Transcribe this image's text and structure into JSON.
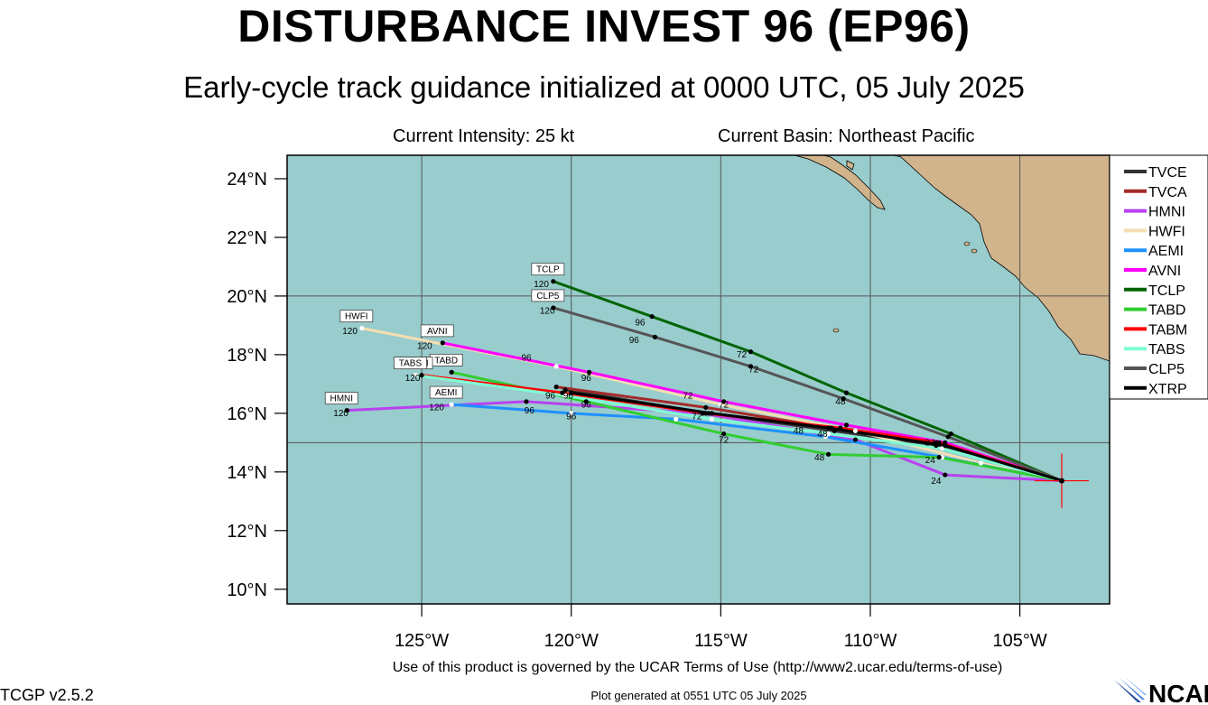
{
  "header": {
    "title": "DISTURBANCE INVEST 96 (EP96)",
    "subtitle": "Early-cycle track guidance initialized at 0000 UTC, 05 July 2025",
    "current_intensity": "Current Intensity: 25 kt",
    "current_basin": "Current Basin: Northeast Pacific"
  },
  "map": {
    "lon_range": [
      -129.5,
      -102
    ],
    "lat_range": [
      9.5,
      24.8
    ],
    "lat_ticks": [
      {
        "value": 24,
        "label": "24°N"
      },
      {
        "value": 22,
        "label": "22°N"
      },
      {
        "value": 20,
        "label": "20°N"
      },
      {
        "value": 18,
        "label": "18°N"
      },
      {
        "value": 16,
        "label": "16°N"
      },
      {
        "value": 14,
        "label": "14°N"
      },
      {
        "value": 12,
        "label": "12°N"
      },
      {
        "value": 10,
        "label": "10°N"
      }
    ],
    "lon_ticks": [
      {
        "value": -125,
        "label": "125°W"
      },
      {
        "value": -120,
        "label": "120°W"
      },
      {
        "value": -115,
        "label": "115°W"
      },
      {
        "value": -110,
        "label": "110°W"
      },
      {
        "value": -105,
        "label": "105°W"
      }
    ],
    "grid_lons": [
      -125,
      -120,
      -115,
      -110,
      -105
    ],
    "grid_lats": [
      15,
      20
    ],
    "initial_position": {
      "lon": -103.6,
      "lat": 13.7
    },
    "colors": {
      "ocean": "#99cccc",
      "land": "#d2b48c"
    }
  },
  "chart_data": {
    "type": "scatter",
    "title": "DISTURBANCE INVEST 96 (EP96)",
    "subtitle": "Early-cycle track guidance initialized at 0000 UTC, 05 July 2025",
    "series": [
      {
        "name": "TVCE",
        "color": "#333333",
        "label_box": "",
        "lon": [
          -103.6,
          -107.8,
          -111.2,
          -115.4,
          -120.2
        ],
        "lat": [
          13.7,
          14.9,
          15.4,
          16.0,
          16.8
        ]
      },
      {
        "name": "TVCA",
        "color": "#a52a2a",
        "label_box": "",
        "lon": [
          -103.6,
          -107.8,
          -111.3,
          -115.5,
          -120.5
        ],
        "lat": [
          13.7,
          15.0,
          15.5,
          16.2,
          16.9
        ]
      },
      {
        "name": "HMNI",
        "color": "#b941f0",
        "label_box": "HMNI",
        "lon": [
          -103.6,
          -107.5,
          -110.5,
          -115.6,
          -121.5,
          -127.5
        ],
        "lat": [
          13.7,
          13.9,
          15.1,
          16.0,
          16.4,
          16.1
        ]
      },
      {
        "name": "HWFI",
        "color": "#f5deb3",
        "label_box": "HWFI",
        "lon": [
          -103.6,
          -106.3,
          -110.5,
          -115.0,
          -120.5,
          -127.0
        ],
        "lat": [
          13.7,
          14.3,
          15.4,
          16.3,
          17.6,
          18.9
        ]
      },
      {
        "name": "AEMI",
        "color": "#1e90ff",
        "label_box": "AEMI",
        "lon": [
          -103.6,
          -107.6,
          -111.5,
          -116.5,
          -120.0,
          -124.0
        ],
        "lat": [
          13.7,
          14.5,
          15.2,
          15.8,
          16.0,
          16.3
        ]
      },
      {
        "name": "AVNI",
        "color": "#ff00ff",
        "label_box": "AVNI",
        "lon": [
          -103.6,
          -107.5,
          -110.8,
          -114.9,
          -119.4,
          -124.3
        ],
        "lat": [
          13.7,
          15.0,
          15.6,
          16.4,
          17.4,
          18.4
        ]
      },
      {
        "name": "TCLP",
        "color": "#006400",
        "label_box": "TCLP",
        "lon": [
          -103.6,
          -107.3,
          -110.8,
          -114.0,
          -117.3,
          -120.6
        ],
        "lat": [
          13.7,
          15.3,
          16.7,
          18.1,
          19.3,
          20.5
        ]
      },
      {
        "name": "TABD",
        "color": "#32cd32",
        "label_box": "TABD",
        "lon": [
          -103.6,
          -107.7,
          -111.4,
          -114.9,
          -119.5,
          -124.0
        ],
        "lat": [
          13.7,
          14.5,
          14.6,
          15.3,
          16.4,
          17.4
        ]
      },
      {
        "name": "TABM",
        "color": "#ff0000",
        "label_box": "TABM",
        "lon": [
          -103.6,
          -107.7,
          -111.0,
          -115.5,
          -120.3,
          -125.0
        ],
        "lat": [
          13.7,
          15.0,
          15.5,
          16.0,
          16.7,
          17.3
        ]
      },
      {
        "name": "TABS",
        "color": "#7fffd4",
        "label_box": "TABS",
        "lon": [
          -103.6,
          -107.6,
          -111.4,
          -115.3,
          -120.2,
          -125.2
        ],
        "lat": [
          13.7,
          14.8,
          15.3,
          15.8,
          16.6,
          17.3
        ]
      },
      {
        "name": "CLP5",
        "color": "#555555",
        "label_box": "CLP5",
        "lon": [
          -103.6,
          -107.4,
          -110.9,
          -114.0,
          -117.2,
          -120.6
        ],
        "lat": [
          13.7,
          15.2,
          16.5,
          17.6,
          18.6,
          19.6
        ]
      },
      {
        "name": "XTRP",
        "color": "#000000",
        "label_box": "",
        "lon": [
          -103.6,
          -107.5,
          -111.4,
          -115.3,
          -120.0
        ],
        "lat": [
          13.7,
          14.9,
          15.5,
          16.0,
          16.7
        ]
      }
    ],
    "point_labels": [
      {
        "text": "24",
        "lon": -107.8,
        "lat": 13.6
      },
      {
        "text": "24",
        "lon": -108.0,
        "lat": 14.3
      },
      {
        "text": "24",
        "lon": -108.0,
        "lat": 14.9
      },
      {
        "text": "48",
        "lon": -111.7,
        "lat": 14.4
      },
      {
        "text": "48",
        "lon": -111.6,
        "lat": 15.2
      },
      {
        "text": "48",
        "lon": -112.4,
        "lat": 15.3
      },
      {
        "text": "48",
        "lon": -111.0,
        "lat": 16.3
      },
      {
        "text": "72",
        "lon": -114.9,
        "lat": 15.0
      },
      {
        "text": "72",
        "lon": -114.9,
        "lat": 16.2
      },
      {
        "text": "72",
        "lon": -115.8,
        "lat": 15.8
      },
      {
        "text": "72",
        "lon": -116.1,
        "lat": 16.5
      },
      {
        "text": "72",
        "lon": -113.9,
        "lat": 17.4
      },
      {
        "text": "72",
        "lon": -114.3,
        "lat": 17.9
      },
      {
        "text": "96",
        "lon": -120.0,
        "lat": 15.8
      },
      {
        "text": "96",
        "lon": -121.4,
        "lat": 16.0
      },
      {
        "text": "96",
        "lon": -119.5,
        "lat": 16.2
      },
      {
        "text": "96",
        "lon": -120.7,
        "lat": 16.5
      },
      {
        "text": "96",
        "lon": -120.1,
        "lat": 16.5
      },
      {
        "text": "96",
        "lon": -119.5,
        "lat": 17.1
      },
      {
        "text": "96",
        "lon": -121.5,
        "lat": 17.8
      },
      {
        "text": "96",
        "lon": -117.9,
        "lat": 18.4
      },
      {
        "text": "96",
        "lon": -117.7,
        "lat": 19.0
      },
      {
        "text": "120",
        "lon": -127.7,
        "lat": 15.9
      },
      {
        "text": "120",
        "lon": -124.5,
        "lat": 16.1
      },
      {
        "text": "120",
        "lon": -127.4,
        "lat": 18.7
      },
      {
        "text": "120",
        "lon": -124.9,
        "lat": 18.2
      },
      {
        "text": "120",
        "lon": -121.0,
        "lat": 20.3
      },
      {
        "text": "120",
        "lon": -120.8,
        "lat": 19.4
      },
      {
        "text": "120",
        "lon": -125.3,
        "lat": 17.1
      }
    ]
  },
  "legend": [
    {
      "label": "TVCE",
      "color": "#333333"
    },
    {
      "label": "TVCA",
      "color": "#a52a2a"
    },
    {
      "label": "HMNI",
      "color": "#b941f0"
    },
    {
      "label": "HWFI",
      "color": "#f5deb3"
    },
    {
      "label": "AEMI",
      "color": "#1e90ff"
    },
    {
      "label": "AVNI",
      "color": "#ff00ff"
    },
    {
      "label": "TCLP",
      "color": "#006400"
    },
    {
      "label": "TABD",
      "color": "#32cd32"
    },
    {
      "label": "TABM",
      "color": "#ff0000"
    },
    {
      "label": "TABS",
      "color": "#7fffd4"
    },
    {
      "label": "CLP5",
      "color": "#555555"
    },
    {
      "label": "XTRP",
      "color": "#000000"
    }
  ],
  "footer": {
    "terms": "Use of this product is governed by the UCAR Terms of Use (http://www2.ucar.edu/terms-of-use)",
    "version": "TCGP v2.5.2",
    "generated": "Plot generated at 0551 UTC   05 July 2025",
    "logo_text": "NCAR"
  }
}
